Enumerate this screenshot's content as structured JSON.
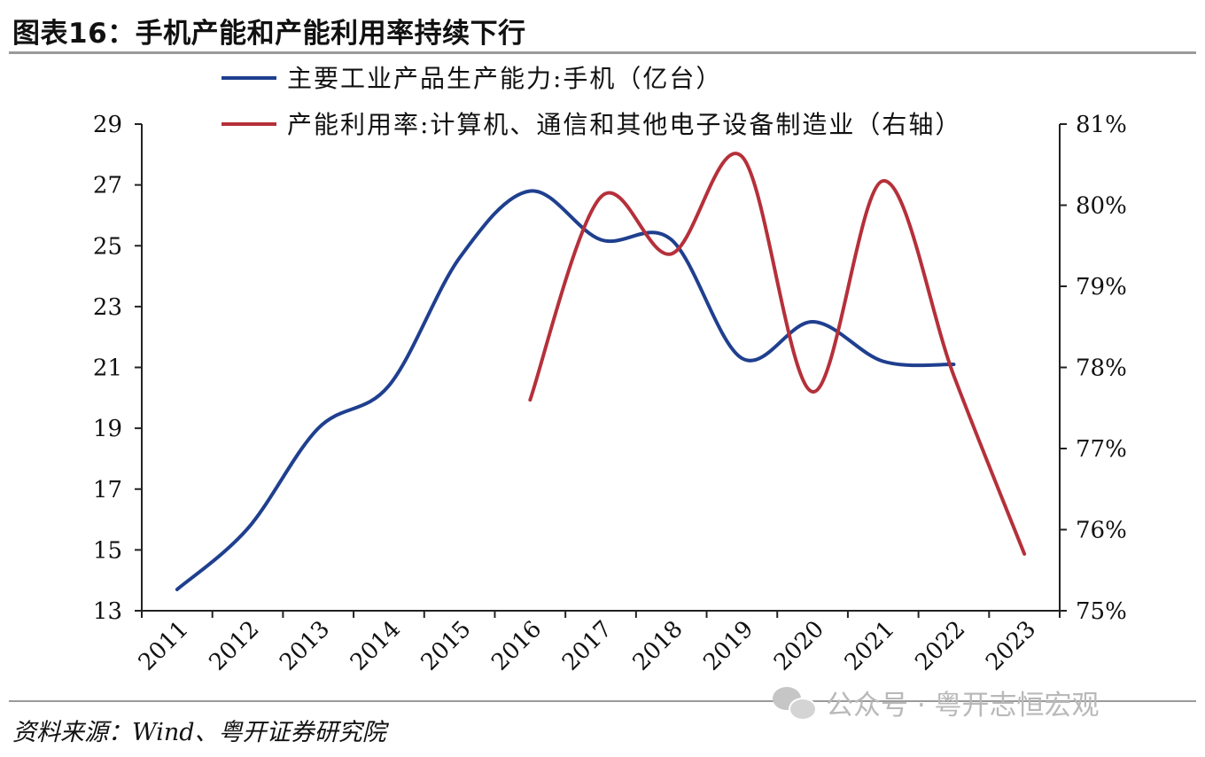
{
  "header": {
    "title": "图表16：手机产能和产能利用率持续下行"
  },
  "footer": {
    "source": "资料来源：Wind、粤开证券研究院",
    "watermark": "公众号 · 粤开志恒宏观"
  },
  "chart_data": {
    "type": "line",
    "x": [
      "2011",
      "2012",
      "2013",
      "2014",
      "2015",
      "2016",
      "2017",
      "2018",
      "2019",
      "2020",
      "2021",
      "2022",
      "2023"
    ],
    "ylim": [
      13,
      29
    ],
    "y_ticks": [
      "13",
      "15",
      "17",
      "19",
      "21",
      "23",
      "25",
      "27",
      "29"
    ],
    "y2lim": [
      75,
      81
    ],
    "y2_ticks": [
      "75%",
      "76%",
      "77%",
      "78%",
      "79%",
      "80%",
      "81%"
    ],
    "series": [
      {
        "name": "主要工业产品生产能力:手机（亿台）",
        "axis": "left",
        "color": "#1f3f8f",
        "values": [
          13.7,
          15.7,
          19.0,
          20.4,
          24.6,
          26.8,
          25.2,
          25.2,
          21.3,
          22.5,
          21.2,
          21.1,
          null
        ]
      },
      {
        "name": "产能利用率:计算机、通信和其他电子设备制造业（右轴）",
        "axis": "right",
        "color": "#b5303a",
        "values": [
          null,
          null,
          null,
          null,
          null,
          77.6,
          80.1,
          79.4,
          80.6,
          77.7,
          80.3,
          77.9,
          75.7
        ]
      }
    ],
    "legend_position": "top",
    "grid": false
  }
}
